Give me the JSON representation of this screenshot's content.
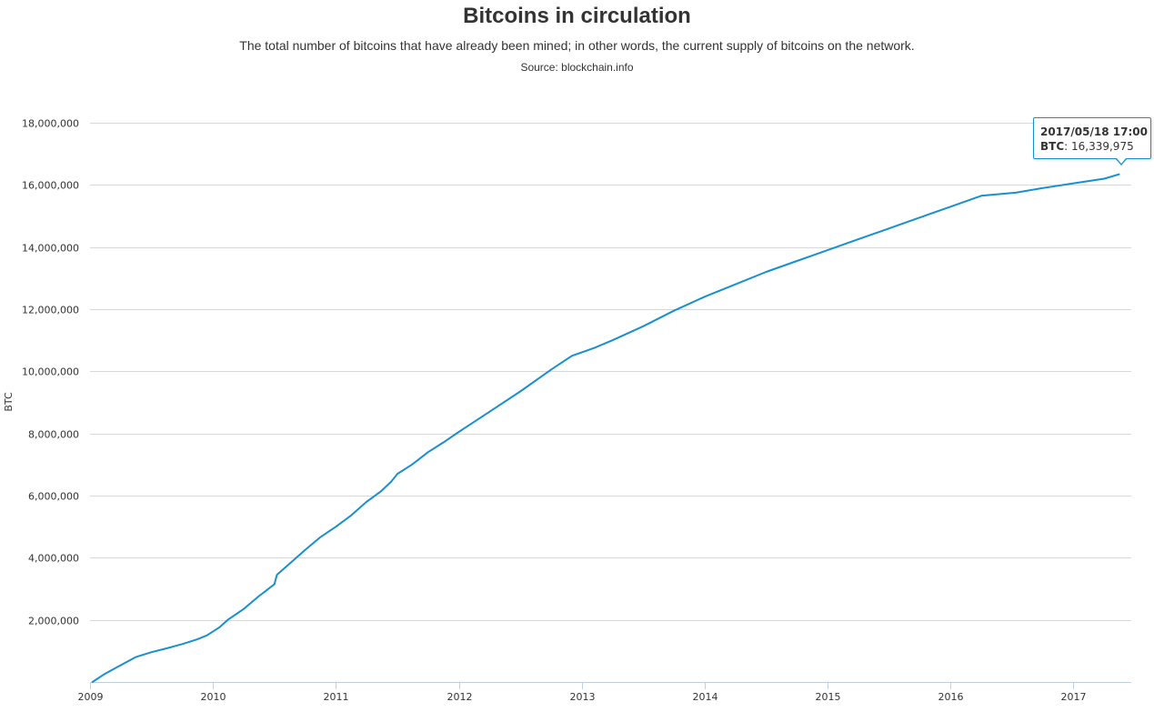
{
  "chart_data": {
    "type": "line",
    "title": "Bitcoins in circulation",
    "subtitle": "The total number of bitcoins that have already been mined; in other words, the current supply of bitcoins on the network.",
    "source": "Source: blockchain.info",
    "ylabel": "BTC",
    "xlabel": "",
    "xlim": [
      2009.0,
      2017.47
    ],
    "ylim": [
      0,
      18000000
    ],
    "y_ticks": [
      2000000,
      4000000,
      6000000,
      8000000,
      10000000,
      12000000,
      14000000,
      16000000,
      18000000
    ],
    "y_tick_labels": [
      "2,000,000",
      "4,000,000",
      "6,000,000",
      "8,000,000",
      "10,000,000",
      "12,000,000",
      "14,000,000",
      "16,000,000",
      "18,000,000"
    ],
    "x_ticks": [
      2009,
      2010,
      2011,
      2012,
      2013,
      2014,
      2015,
      2016,
      2017
    ],
    "x_tick_labels": [
      "2009",
      "2010",
      "2011",
      "2012",
      "2013",
      "2014",
      "2015",
      "2016",
      "2017"
    ],
    "grid": true,
    "legend": "none",
    "line_color": "#1a8fd0",
    "series": [
      {
        "name": "BTC",
        "x": [
          2009.02,
          2009.12,
          2009.25,
          2009.37,
          2009.5,
          2009.62,
          2009.75,
          2009.87,
          2009.95,
          2010.05,
          2010.12,
          2010.25,
          2010.37,
          2010.5,
          2010.52,
          2010.62,
          2010.75,
          2010.87,
          2011.0,
          2011.12,
          2011.25,
          2011.37,
          2011.45,
          2011.5,
          2011.62,
          2011.75,
          2011.87,
          2012.0,
          2012.25,
          2012.5,
          2012.75,
          2012.92,
          2013.1,
          2013.25,
          2013.5,
          2013.75,
          2014.0,
          2014.25,
          2014.5,
          2014.75,
          2015.0,
          2015.25,
          2015.5,
          2015.75,
          2016.0,
          2016.25,
          2016.53,
          2016.75,
          2017.0,
          2017.25,
          2017.37
        ],
        "y": [
          0,
          260000,
          540000,
          800000,
          960000,
          1080000,
          1220000,
          1370000,
          1500000,
          1750000,
          2000000,
          2350000,
          2750000,
          3150000,
          3450000,
          3800000,
          4250000,
          4650000,
          5000000,
          5350000,
          5800000,
          6150000,
          6450000,
          6700000,
          7000000,
          7400000,
          7700000,
          8050000,
          8700000,
          9350000,
          10050000,
          10500000,
          10750000,
          11000000,
          11450000,
          11950000,
          12400000,
          12800000,
          13200000,
          13550000,
          13900000,
          14250000,
          14600000,
          14950000,
          15300000,
          15650000,
          15750000,
          15900000,
          16050000,
          16200000,
          16339975
        ]
      }
    ],
    "tooltip": {
      "date": "2017/05/18 17:00",
      "series_label": "BTC",
      "value": "16,339,975"
    }
  }
}
